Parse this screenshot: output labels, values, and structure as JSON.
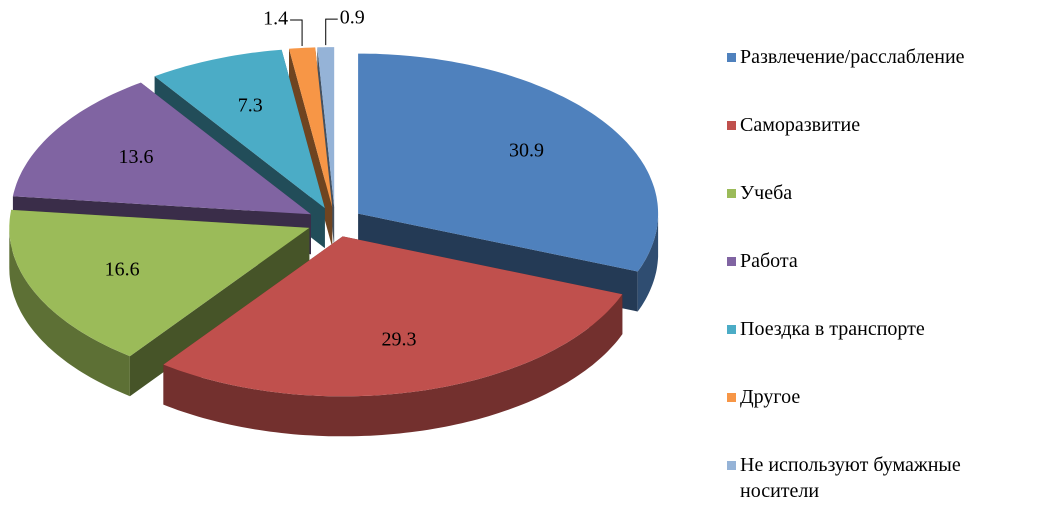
{
  "chart_data": {
    "type": "pie",
    "categories": [
      "Развлечение/расслабление",
      "Саморазвитие",
      "Учеба",
      "Работа",
      "Поездка в транспорте",
      "Другое",
      "Не используют бумажные носители"
    ],
    "values": [
      30.9,
      29.3,
      16.6,
      13.6,
      7.3,
      1.4,
      0.9
    ],
    "colors": [
      "#4F81BD",
      "#C0504D",
      "#9BBB59",
      "#8064A2",
      "#4BACC6",
      "#F79646",
      "#95B3D7"
    ],
    "legend": "right"
  }
}
